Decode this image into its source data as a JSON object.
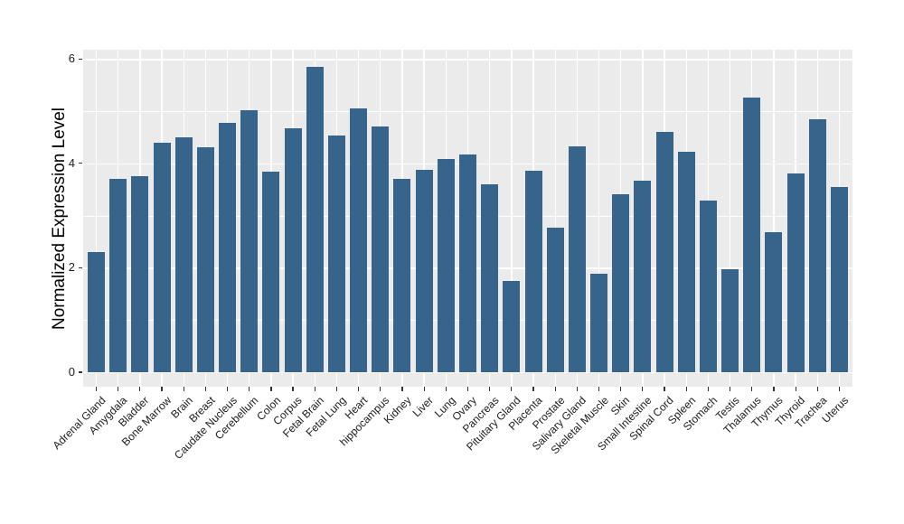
{
  "figure": {
    "background": "#FFFFFF"
  },
  "chart_data": {
    "type": "bar",
    "title": "",
    "xlabel": "",
    "ylabel": "Normalized Expression Level",
    "categories": [
      "Adrenal Gland",
      "Amygdala",
      "Bladder",
      "Bone Marrow",
      "Brain",
      "Breast",
      "Caudate Nucleus",
      "Cerebellum",
      "Colon",
      "Corpus",
      "Fetal Brain",
      "Fetal Lung",
      "Heart",
      "hippocampus",
      "Kidney",
      "Liver",
      "Lung",
      "Ovary",
      "Pancreas",
      "Pituitary Gland",
      "Placenta",
      "Prostate",
      "Salivary Gland",
      "Skeletal Muscle",
      "Skin",
      "Small Intestine",
      "Spinal Cord",
      "Spleen",
      "Stomach",
      "Testis",
      "Thalamus",
      "Thymus",
      "Thyroid",
      "Trachea",
      "Uterus"
    ],
    "values": [
      2.3,
      3.71,
      3.75,
      4.39,
      4.49,
      4.31,
      4.78,
      5.02,
      3.84,
      4.67,
      5.85,
      4.53,
      5.06,
      4.71,
      3.7,
      3.88,
      4.08,
      4.17,
      3.6,
      1.75,
      3.86,
      2.77,
      4.32,
      1.88,
      3.4,
      3.67,
      4.61,
      4.23,
      3.29,
      1.98,
      5.26,
      2.68,
      3.81,
      4.85,
      3.55
    ],
    "ylim": [
      0,
      6.15
    ],
    "yticks": [
      0,
      2,
      4,
      6
    ],
    "yticks_minor": [
      1,
      3,
      5
    ],
    "x_tick_rotation_deg": 45,
    "grid": "horizontal major+minor, vertical major at category centers",
    "legend_position": "none",
    "bar_color": "#36648B",
    "panel_background": "#EBEBEB",
    "gridline_color": "#FFFFFF",
    "tick_color": "#333333",
    "text_color": "#1a1a1a"
  }
}
